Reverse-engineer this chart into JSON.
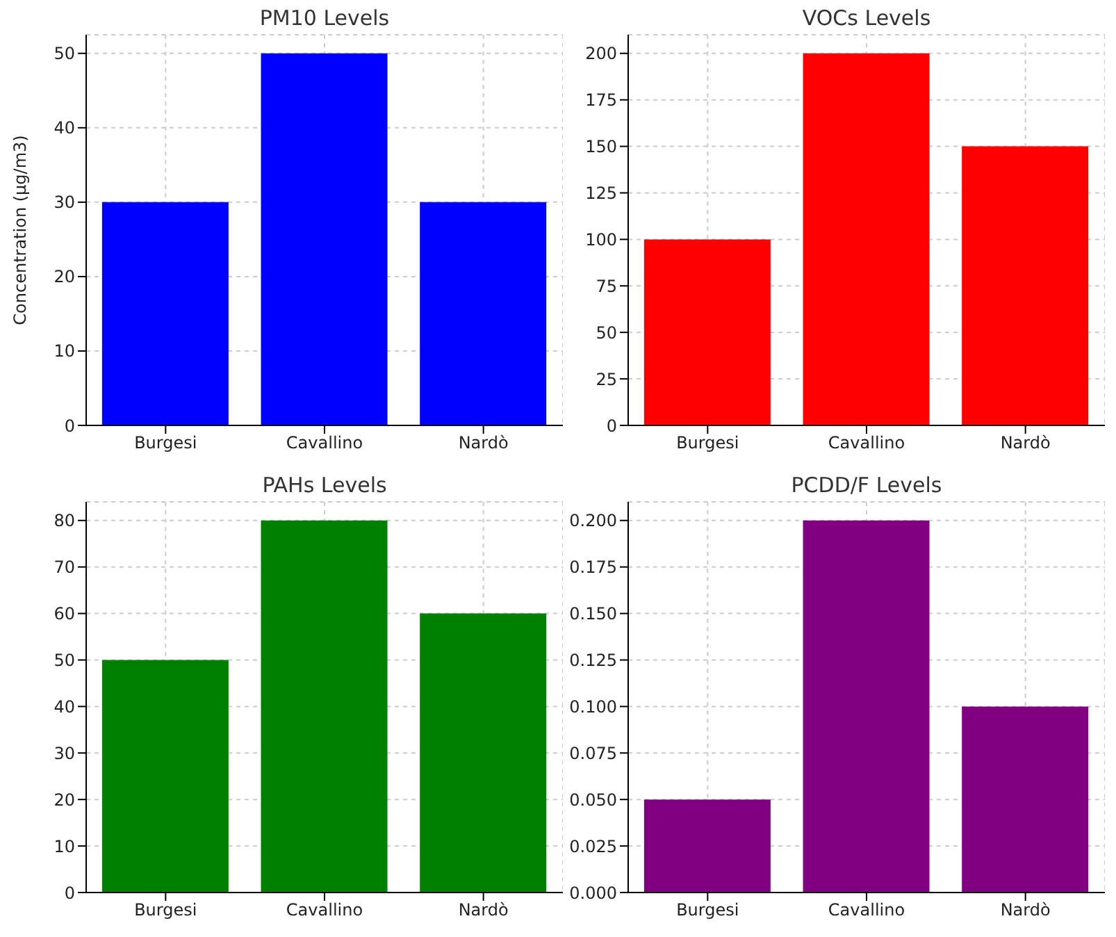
{
  "chart_data": [
    {
      "type": "bar",
      "title": "PM10 Levels",
      "ylabel": "Concentration (µg/m3)",
      "categories": [
        "Burgesi",
        "Cavallino",
        "Nardò"
      ],
      "values": [
        30,
        50,
        30
      ],
      "color": "#0000ff",
      "ylim": [
        0,
        52.5
      ],
      "yticks": [
        0,
        10,
        20,
        30,
        40,
        50
      ],
      "grid": true
    },
    {
      "type": "bar",
      "title": "VOCs Levels",
      "categories": [
        "Burgesi",
        "Cavallino",
        "Nardò"
      ],
      "values": [
        100,
        200,
        150
      ],
      "color": "#ff0000",
      "ylim": [
        0,
        210
      ],
      "yticks": [
        0,
        25,
        50,
        75,
        100,
        125,
        150,
        175,
        200
      ],
      "grid": true
    },
    {
      "type": "bar",
      "title": "PAHs Levels",
      "categories": [
        "Burgesi",
        "Cavallino",
        "Nardò"
      ],
      "values": [
        50,
        80,
        60
      ],
      "color": "#008000",
      "ylim": [
        0,
        84
      ],
      "yticks": [
        0,
        10,
        20,
        30,
        40,
        50,
        60,
        70,
        80
      ],
      "grid": true
    },
    {
      "type": "bar",
      "title": "PCDD/F Levels",
      "categories": [
        "Burgesi",
        "Cavallino",
        "Nardò"
      ],
      "values": [
        0.05,
        0.2,
        0.1
      ],
      "color": "#800080",
      "ylim": [
        0,
        0.21
      ],
      "yticks": [
        {
          "value": 0,
          "label": "0.000"
        },
        {
          "value": 0.025,
          "label": "0.025"
        },
        {
          "value": 0.05,
          "label": "0.050"
        },
        {
          "value": 0.075,
          "label": "0.075"
        },
        {
          "value": 0.1,
          "label": "0.100"
        },
        {
          "value": 0.125,
          "label": "0.125"
        },
        {
          "value": 0.15,
          "label": "0.150"
        },
        {
          "value": 0.175,
          "label": "0.175"
        },
        {
          "value": 0.2,
          "label": "0.200"
        }
      ],
      "grid": true
    }
  ]
}
